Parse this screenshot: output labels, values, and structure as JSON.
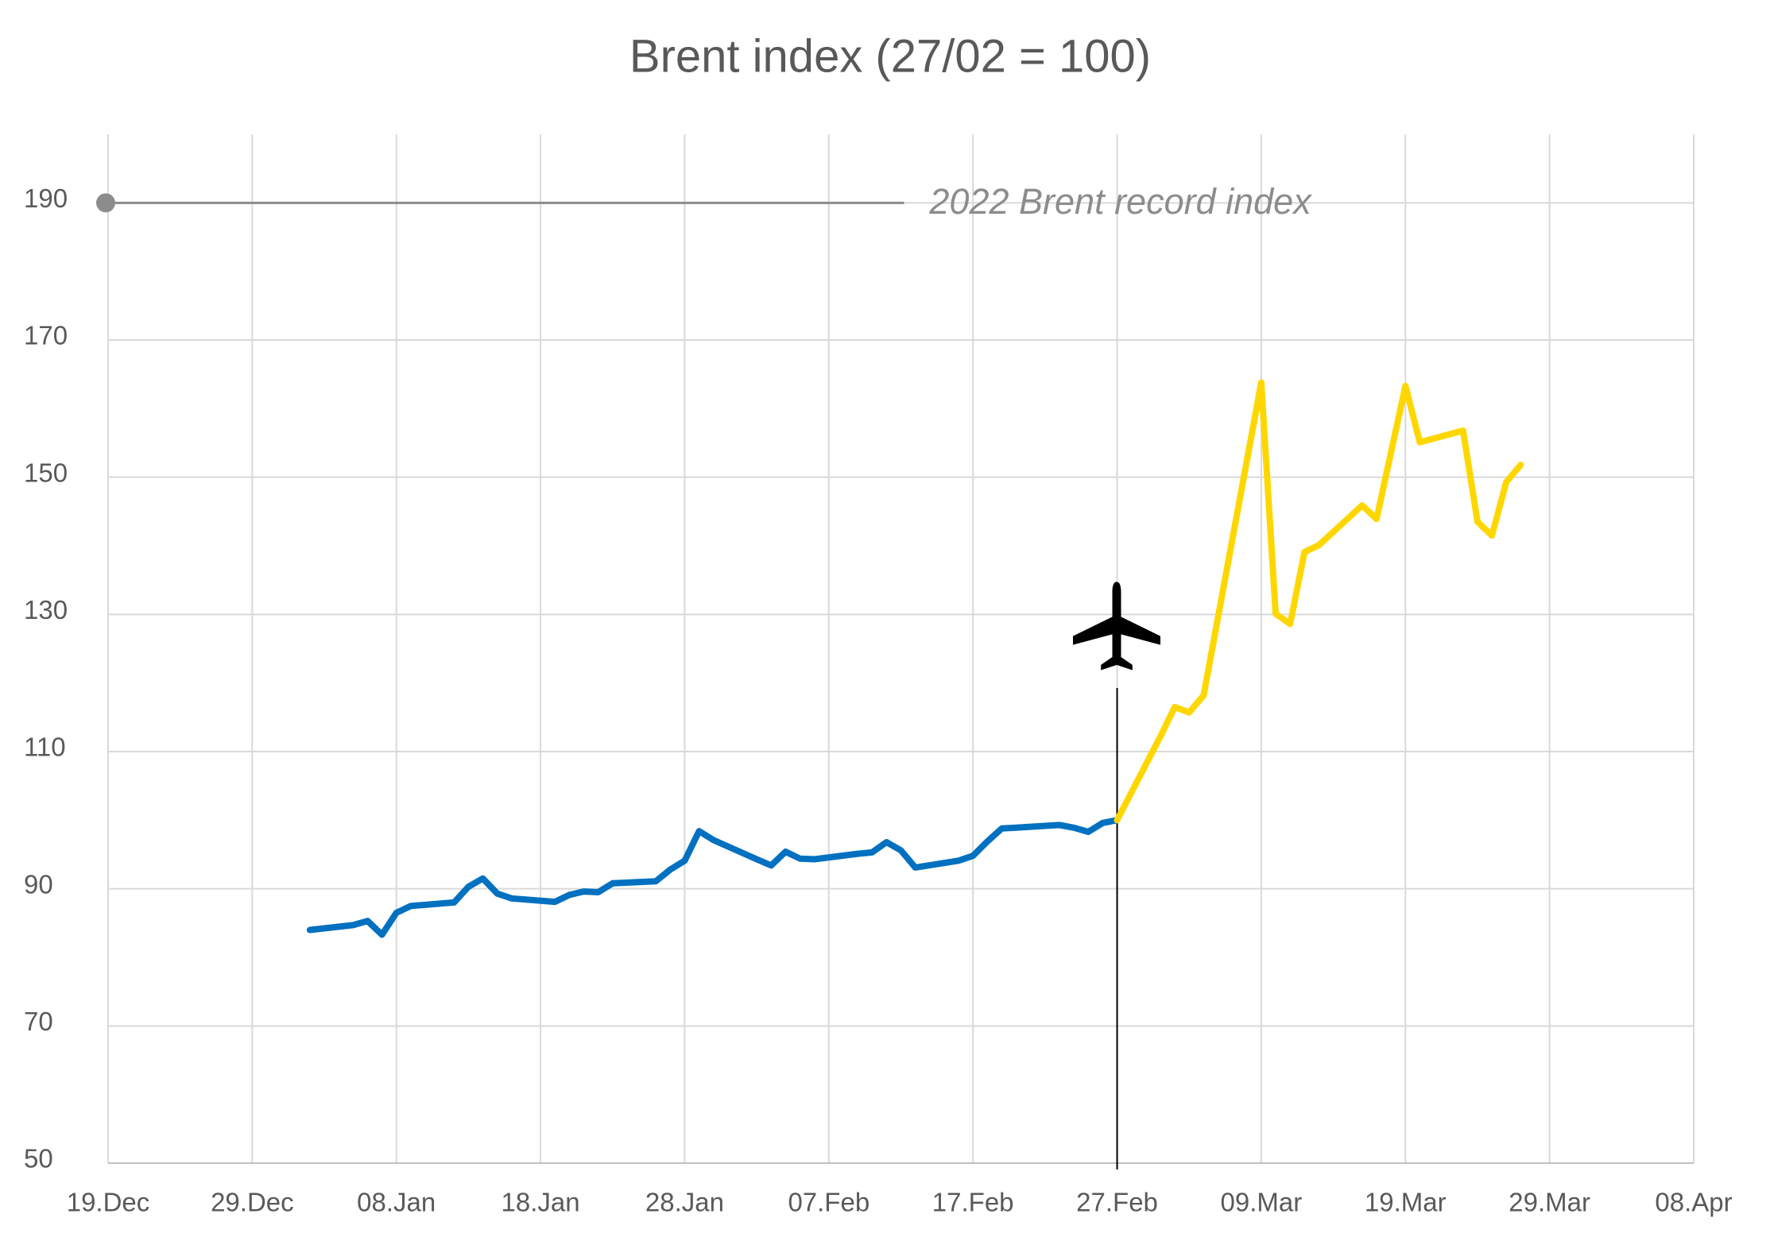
{
  "chart_data": {
    "type": "line",
    "title": "Brent index (27/02 = 100)",
    "xlim": [
      "19.Dec",
      "08.Apr"
    ],
    "xticks": [
      "19.Dec",
      "29.Dec",
      "08.Jan",
      "18.Jan",
      "28.Jan",
      "07.Feb",
      "17.Feb",
      "27.Feb",
      "09.Mar",
      "19.Mar",
      "29.Mar",
      "08.Apr"
    ],
    "ylim": [
      50,
      200
    ],
    "yticks": [
      50,
      70,
      90,
      110,
      130,
      150,
      170,
      190
    ],
    "grid": true,
    "series": [
      {
        "color": "#0070c0",
        "x": [
          "02.Jan",
          "05.Jan",
          "06.Jan",
          "07.Jan",
          "08.Jan",
          "09.Jan",
          "12.Jan",
          "13.Jan",
          "14.Jan",
          "15.Jan",
          "16.Jan",
          "19.Jan",
          "20.Jan",
          "21.Jan",
          "22.Jan",
          "23.Jan",
          "26.Jan",
          "27.Jan",
          "28.Jan",
          "29.Jan",
          "30.Jan",
          "02.Feb",
          "03.Feb",
          "04.Feb",
          "05.Feb",
          "06.Feb",
          "09.Feb",
          "10.Feb",
          "11.Feb",
          "12.Feb",
          "13.Feb",
          "16.Feb",
          "17.Feb",
          "18.Feb",
          "19.Feb",
          "20.Feb",
          "23.Feb",
          "24.Feb",
          "25.Feb",
          "26.Feb",
          "27.Feb"
        ],
        "values": [
          84.0,
          84.7,
          85.3,
          83.3,
          86.5,
          87.5,
          88.0,
          90.3,
          91.5,
          89.3,
          88.6,
          88.1,
          89.1,
          89.6,
          89.5,
          90.8,
          91.1,
          92.8,
          94.1,
          98.4,
          97.1,
          94.3,
          93.4,
          95.4,
          94.4,
          94.3,
          95.1,
          95.3,
          96.8,
          95.6,
          93.1,
          94.1,
          94.8,
          96.9,
          98.8,
          98.9,
          99.3,
          98.9,
          98.3,
          99.6,
          100
        ]
      },
      {
        "color": "#ffd700",
        "x": [
          "27.Feb",
          "02.Mar",
          "03.Mar",
          "04.Mar",
          "05.Mar",
          "09.Mar",
          "10.Mar",
          "11.Mar",
          "12.Mar",
          "13.Mar",
          "16.Mar",
          "17.Mar",
          "19.Mar",
          "20.Mar",
          "23.Mar",
          "24.Mar",
          "25.Mar",
          "26.Mar",
          "27.Mar"
        ],
        "values": [
          100,
          112.2,
          116.5,
          115.7,
          118.2,
          163.8,
          130.1,
          128.6,
          139.1,
          140.1,
          145.9,
          143.9,
          163.3,
          155.1,
          156.8,
          143.5,
          141.5,
          149.3,
          151.8
        ]
      }
    ],
    "reference_line": {
      "value": 190,
      "label": "2022 Brent record index",
      "color": "#8c8c8c"
    },
    "event_date": "27.Feb"
  }
}
